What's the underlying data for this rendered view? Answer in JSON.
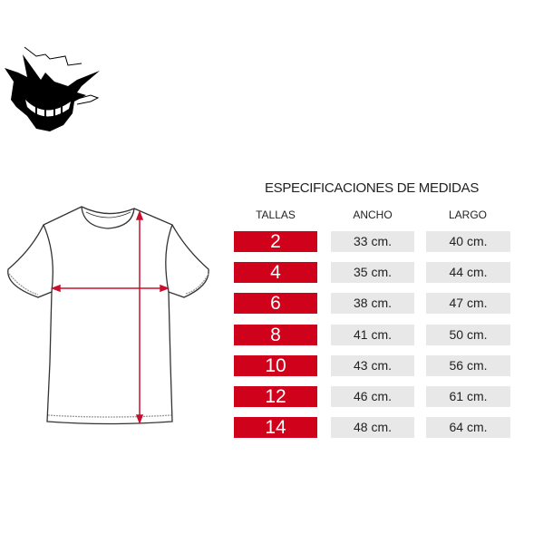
{
  "title": "ESPECIFICACIONES DE MEDIDAS",
  "headers": {
    "size": "TALLAS",
    "width": "ANCHO",
    "length": "LARGO"
  },
  "rows": [
    {
      "size": "2",
      "width": "33 cm.",
      "length": "40 cm."
    },
    {
      "size": "4",
      "width": "35 cm.",
      "length": "44 cm."
    },
    {
      "size": "6",
      "width": "38 cm.",
      "length": "47 cm."
    },
    {
      "size": "8",
      "width": "41 cm.",
      "length": "50 cm."
    },
    {
      "size": "10",
      "width": "43 cm.",
      "length": "56 cm."
    },
    {
      "size": "12",
      "width": "46 cm.",
      "length": "61 cm."
    },
    {
      "size": "14",
      "width": "48 cm.",
      "length": "64 cm."
    }
  ],
  "colors": {
    "accent": "#d0021b",
    "cell_bg": "#e8e8e8",
    "arrow": "#c8102e"
  },
  "icons": {
    "logo": "ghost-logo",
    "diagram": "tshirt-measurement-diagram"
  }
}
